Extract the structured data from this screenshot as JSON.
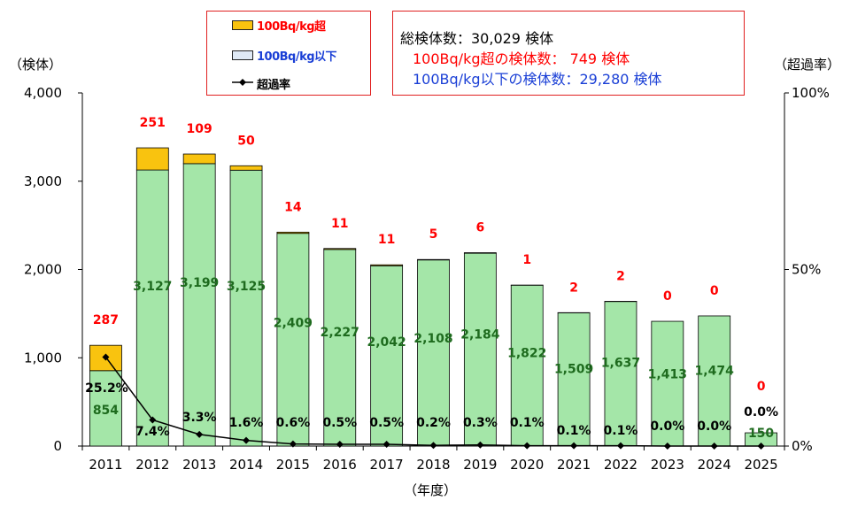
{
  "chart_data": {
    "type": "bar",
    "categories": [
      "2011",
      "2012",
      "2013",
      "2014",
      "2015",
      "2016",
      "2017",
      "2018",
      "2019",
      "2020",
      "2021",
      "2022",
      "2023",
      "2024",
      "2025"
    ],
    "series": [
      {
        "name": "100Bq/kg超",
        "values": [
          287,
          251,
          109,
          50,
          14,
          11,
          11,
          5,
          6,
          1,
          2,
          2,
          0,
          0,
          0
        ],
        "color": "#f9c30f"
      },
      {
        "name": "100Bq/kg以下",
        "values": [
          854,
          3127,
          3199,
          3125,
          2409,
          2227,
          2042,
          2108,
          2184,
          1822,
          1509,
          1637,
          1413,
          1474,
          150
        ],
        "color": "#a4e6a8"
      },
      {
        "name": "超過率",
        "values": [
          25.2,
          7.4,
          3.3,
          1.6,
          0.6,
          0.5,
          0.5,
          0.2,
          0.3,
          0.1,
          0.1,
          0.1,
          0.0,
          0.0,
          0.0
        ],
        "color": "#000000"
      }
    ],
    "exceed_labels": [
      "287",
      "251",
      "109",
      "50",
      "14",
      "11",
      "11",
      "5",
      "6",
      "1",
      "2",
      "2",
      "0",
      "0",
      "0"
    ],
    "below_labels": [
      "854",
      "3,127",
      "3,199",
      "3,125",
      "2,409",
      "2,227",
      "2,042",
      "2,108",
      "2,184",
      "1,822",
      "1,509",
      "1,637",
      "1,413",
      "1,474",
      "150"
    ],
    "rate_labels": [
      "25.2%",
      "7.4%",
      "3.3%",
      "1.6%",
      "0.6%",
      "0.5%",
      "0.5%",
      "0.2%",
      "0.3%",
      "0.1%",
      "0.1%",
      "0.1%",
      "0.0%",
      "0.0%",
      "0.0%"
    ],
    "y_left_ticks": [
      "0",
      "1,000",
      "2,000",
      "3,000",
      "4,000"
    ],
    "y_left_range": [
      0,
      4000
    ],
    "y_right_ticks": [
      "0%",
      "50%",
      "100%"
    ],
    "y_right_range": [
      0,
      100
    ],
    "ylabel_left": "（検体）",
    "ylabel_right": "（超過率）",
    "xlabel": "（年度）",
    "colors": {
      "exceed_label": "#ff0000",
      "below_label": "#1e6b1e",
      "rate_label": "#000000",
      "bar_outline": "#000000"
    }
  },
  "legend": {
    "items": [
      {
        "label": "100Bq/kg超",
        "color": "#f9c30f",
        "text_color": "#ff0000"
      },
      {
        "label": "100Bq/kg以下",
        "color": "#dfe9f5",
        "text_color": "#1a3fd6"
      },
      {
        "label": "超過率",
        "color": "#000000",
        "text_color": "#000000"
      }
    ]
  },
  "summary": {
    "total": "総検体数：30,029 検体",
    "over": "100Bq/kg超の検体数： 749 検体",
    "under": "100Bq/kg以下の検体数：29,280 検体",
    "colors": {
      "total": "#000000",
      "over": "#ff0000",
      "under": "#1a3fd6"
    }
  }
}
